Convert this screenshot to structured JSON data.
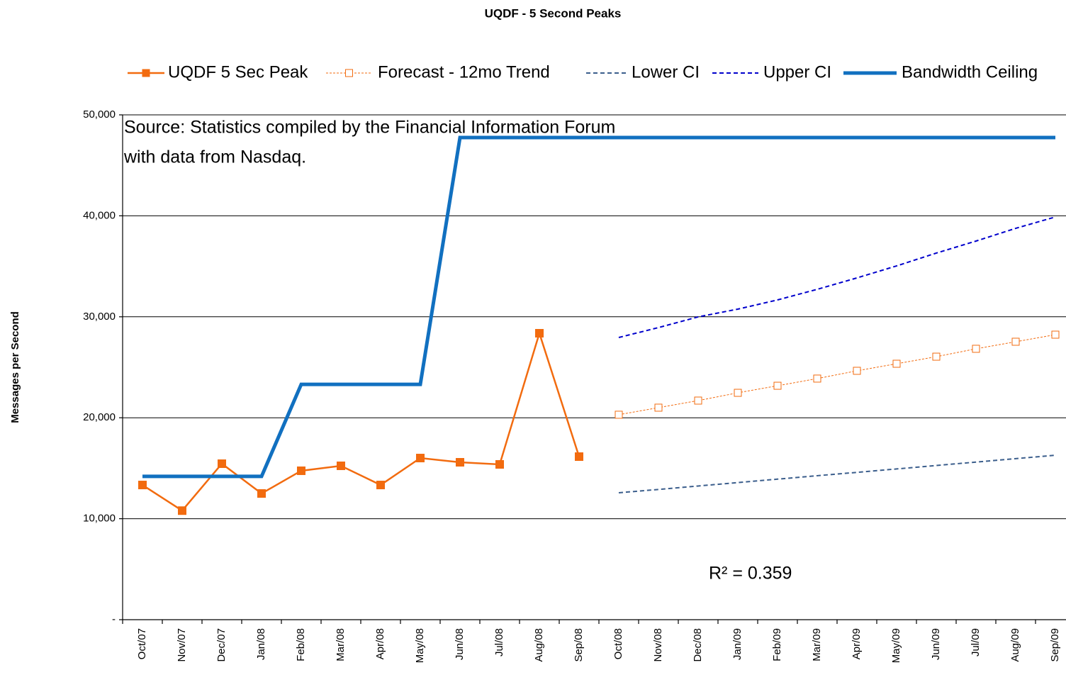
{
  "chart_data": {
    "type": "line",
    "title": "UQDF - 5 Second Peaks",
    "y_label": "Messages per Second",
    "annotations": [
      "Source: Statistics compiled by the Financial Information  Forum",
      "with data from Nasdaq.",
      "R² = 0.359"
    ],
    "categories": [
      "Oct/07",
      "Nov/07",
      "Dec/07",
      "Jan/08",
      "Feb/08",
      "Mar/08",
      "Apr/08",
      "May/08",
      "Jun/08",
      "Jul/08",
      "Aug/08",
      "Sep/08",
      "Oct/08",
      "Nov/08",
      "Dec/08",
      "Jan/09",
      "Feb/09",
      "Mar/09",
      "Apr/09",
      "May/09",
      "Jun/09",
      "Jul/09",
      "Aug/09",
      "Sep/09"
    ],
    "series": [
      {
        "name": "UQDF 5 Sec Peak",
        "color": "#f26b0f",
        "width": 2.5,
        "dashed": false,
        "marker": "square",
        "values": [
          13340,
          10800,
          15450,
          12500,
          14750,
          15240,
          13340,
          16010,
          15590,
          15380,
          28370,
          16150,
          null,
          null,
          null,
          null,
          null,
          null,
          null,
          null,
          null,
          null,
          null,
          null
        ]
      },
      {
        "name": "Forecast - 12mo Trend",
        "color": "#f26b0f",
        "width": 1,
        "dashed": true,
        "marker": "hollow-square",
        "values": [
          null,
          null,
          null,
          null,
          null,
          null,
          null,
          null,
          null,
          null,
          null,
          null,
          20300,
          21000,
          21700,
          22470,
          23170,
          23880,
          24650,
          25350,
          26050,
          26830,
          27530,
          28230
        ]
      },
      {
        "name": "Lower CI",
        "color": "#3b5e8c",
        "width": 2,
        "dashed": true,
        "marker": "none",
        "values": [
          null,
          null,
          null,
          null,
          null,
          null,
          null,
          null,
          null,
          null,
          null,
          null,
          12570,
          12900,
          13240,
          13580,
          13920,
          14260,
          14590,
          14930,
          15270,
          15610,
          15950,
          16290
        ]
      },
      {
        "name": "Upper CI",
        "color": "#0000cc",
        "width": 2,
        "dashed": true,
        "marker": "none",
        "values": [
          null,
          null,
          null,
          null,
          null,
          null,
          null,
          null,
          null,
          null,
          null,
          null,
          27950,
          28930,
          29990,
          30760,
          31670,
          32720,
          33850,
          35040,
          36310,
          37500,
          38760,
          39890
        ]
      },
      {
        "name": "Bandwidth Ceiling",
        "color": "#1170c0",
        "width": 5,
        "dashed": false,
        "marker": "none",
        "values": [
          14190,
          14190,
          14190,
          14190,
          23310,
          23310,
          23310,
          23310,
          47750,
          47750,
          47750,
          47750,
          47750,
          47750,
          47750,
          47750,
          47750,
          47750,
          47750,
          47750,
          47750,
          47750,
          47750,
          47750
        ]
      }
    ],
    "ylim": [
      0,
      50000
    ],
    "yticks": [
      {
        "value": 0,
        "label": "-"
      },
      {
        "value": 10000,
        "label": "10,000"
      },
      {
        "value": 20000,
        "label": "20,000"
      },
      {
        "value": 30000,
        "label": "30,000"
      },
      {
        "value": 40000,
        "label": "40,000"
      },
      {
        "value": 50000,
        "label": "50,000"
      }
    ],
    "grid": true
  }
}
